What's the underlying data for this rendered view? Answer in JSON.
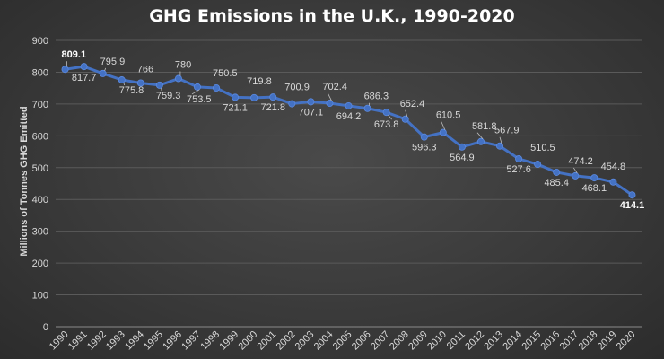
{
  "chart_data": {
    "type": "line",
    "title": "GHG Emissions in the U.K., 1990-2020",
    "xlabel": "",
    "ylabel": "Millions of Tonnes GHG Emitted",
    "ylim": [
      0,
      900
    ],
    "yticks": [
      0,
      100,
      200,
      300,
      400,
      500,
      600,
      700,
      800,
      900
    ],
    "grid": true,
    "legend": "none",
    "series": [
      {
        "color": "#4472c4",
        "x": [
          "1990",
          "1991",
          "1992",
          "1993",
          "1994",
          "1995",
          "1996",
          "1997",
          "1998",
          "1999",
          "2000",
          "2001",
          "2002",
          "2003",
          "2004",
          "2005",
          "2006",
          "2007",
          "2008",
          "2009",
          "2010",
          "2011",
          "2012",
          "2013",
          "2014",
          "2015",
          "2016",
          "2017",
          "2018",
          "2019",
          "2020"
        ],
        "values": [
          809.1,
          817.7,
          795.9,
          775.8,
          766,
          759.3,
          780,
          753.5,
          750.5,
          721.1,
          719.8,
          721.8,
          700.9,
          707.1,
          702.4,
          694.2,
          686.3,
          673.8,
          652.4,
          596.3,
          610.5,
          564.9,
          581.8,
          567.9,
          527.6,
          510.5,
          485.4,
          474.2,
          468.1,
          454.8,
          414.1
        ],
        "labels": [
          "809.1",
          "817.7",
          "795.9",
          "775.8",
          "766",
          "759.3",
          "780",
          "753.5",
          "750.5",
          "721.1",
          "719.8",
          "721.8",
          "700.9",
          "707.1",
          "702.4",
          "694.2",
          "686.3",
          "673.8",
          "652.4",
          "596.3",
          "610.5",
          "564.9",
          "581.8",
          "567.9",
          "527.6",
          "510.5",
          "485.4",
          "474.2",
          "468.1",
          "454.8",
          "414.1"
        ]
      }
    ]
  }
}
